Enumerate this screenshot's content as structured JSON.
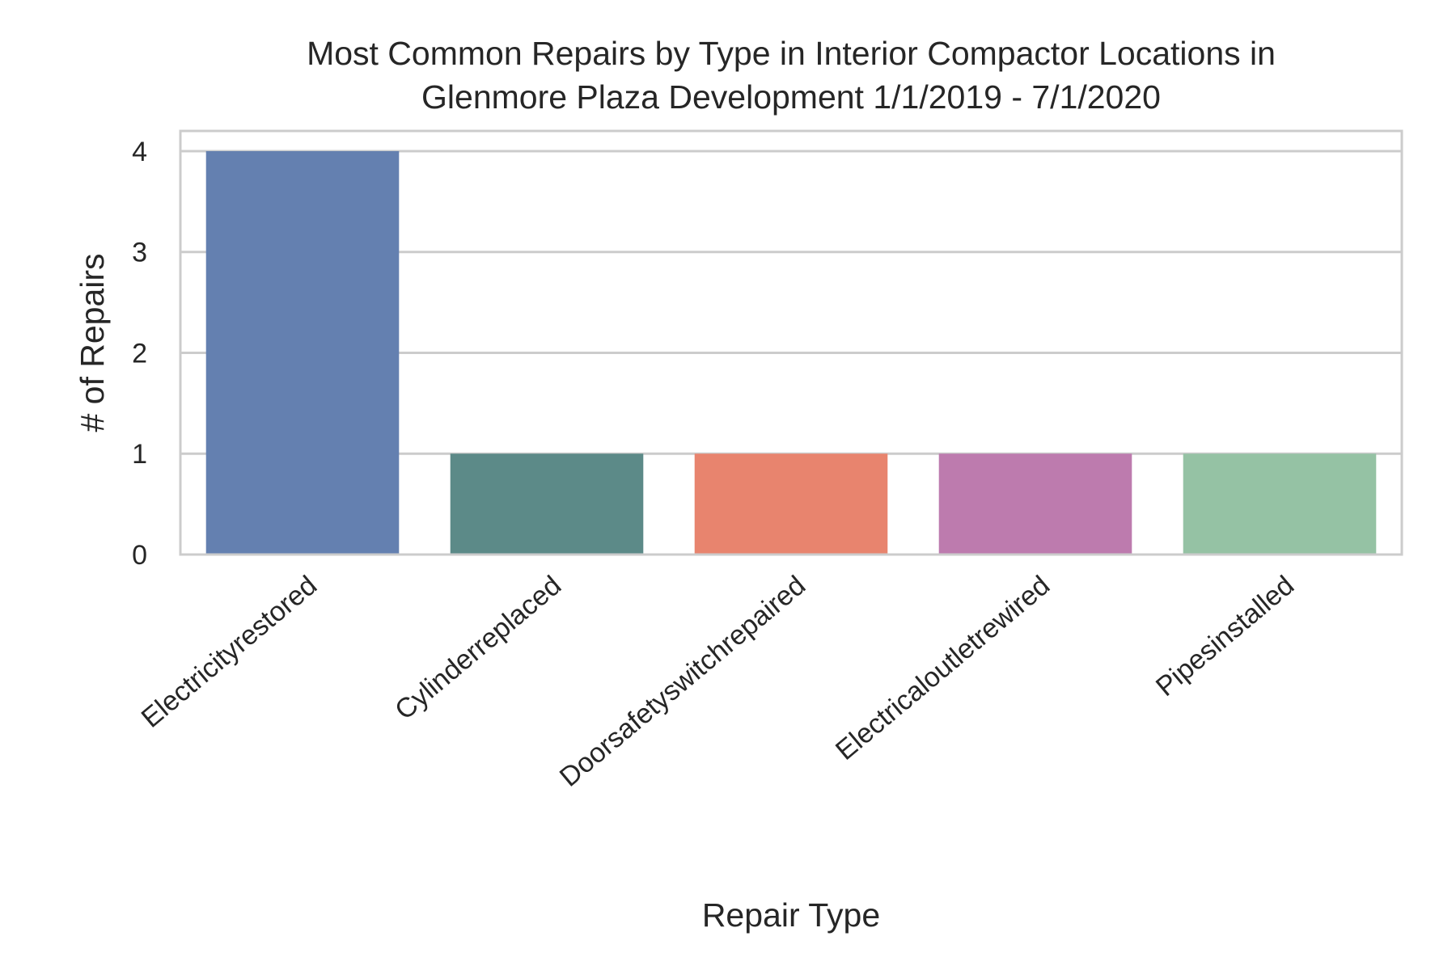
{
  "chart_data": {
    "type": "bar",
    "title_lines": [
      "Most Common Repairs by Type in Interior Compactor Locations in",
      "Glenmore Plaza Development 1/1/2019 - 7/1/2020"
    ],
    "xlabel": "Repair Type",
    "ylabel": "# of Repairs",
    "categories": [
      "Electricityrestored",
      "Cylinderreplaced",
      "Doorsafetyswitchrepaired",
      "Electricaloutletrewired",
      "Pipesinstalled"
    ],
    "values": [
      4,
      1,
      1,
      1,
      1
    ],
    "colors": [
      "#6480b0",
      "#5c8a88",
      "#e8846e",
      "#bd7bae",
      "#95c2a4"
    ],
    "ylim": [
      0,
      4.2
    ],
    "yticks": [
      0,
      1,
      2,
      3,
      4
    ],
    "grid": true
  }
}
